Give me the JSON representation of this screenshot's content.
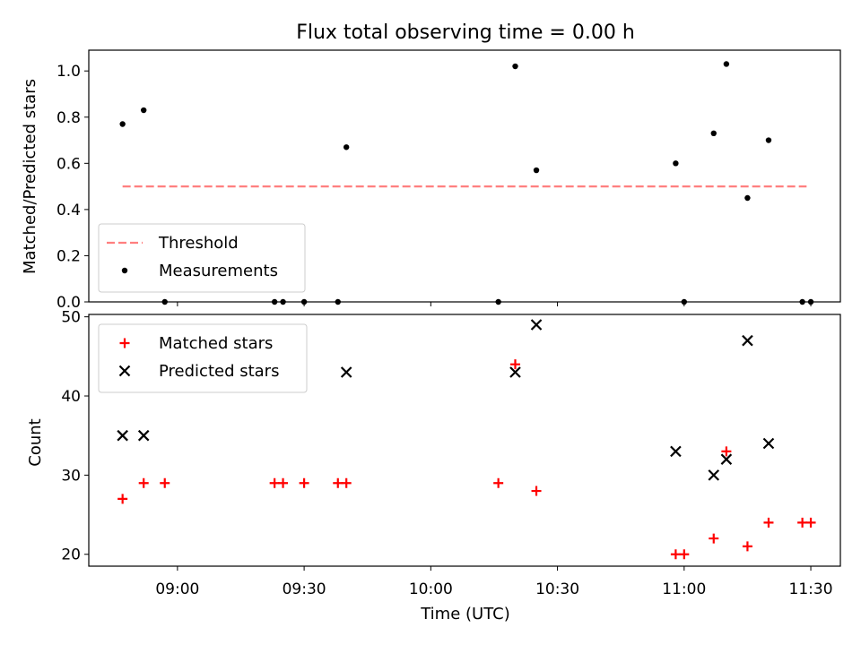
{
  "chart_data": [
    {
      "type": "scatter",
      "title": "Flux total observing time = 0.00 h",
      "xlabel": "",
      "ylabel": "Matched/Predicted stars",
      "xlim": [
        "08:39",
        "11:37"
      ],
      "ylim": [
        0,
        1.09
      ],
      "yticks": [
        0.0,
        0.2,
        0.4,
        0.6,
        0.8,
        1.0
      ],
      "ytick_labels": [
        "0.0",
        "0.2",
        "0.4",
        "0.6",
        "0.8",
        "1.0"
      ],
      "legend": {
        "position": "lower-left",
        "entries": [
          {
            "label": "Threshold",
            "marker": "dashed-line",
            "color": "#ff7f7f"
          },
          {
            "label": "Measurements",
            "marker": "dot",
            "color": "#000000"
          }
        ]
      },
      "threshold": {
        "name": "Threshold",
        "x": [
          "08:47",
          "11:29"
        ],
        "y": 0.5,
        "color": "#ff7f7f",
        "style": "dashed"
      },
      "series": [
        {
          "name": "Measurements",
          "color": "#000000",
          "marker": "dot",
          "points": [
            {
              "x": "08:47",
              "y": 0.77
            },
            {
              "x": "08:52",
              "y": 0.83
            },
            {
              "x": "08:57",
              "y": 0.0
            },
            {
              "x": "09:23",
              "y": 0.0
            },
            {
              "x": "09:25",
              "y": 0.0
            },
            {
              "x": "09:30",
              "y": 0.0
            },
            {
              "x": "09:38",
              "y": 0.0
            },
            {
              "x": "09:40",
              "y": 0.67
            },
            {
              "x": "10:16",
              "y": 0.0
            },
            {
              "x": "10:20",
              "y": 1.02
            },
            {
              "x": "10:25",
              "y": 0.57
            },
            {
              "x": "10:58",
              "y": 0.6
            },
            {
              "x": "11:00",
              "y": 0.0
            },
            {
              "x": "11:07",
              "y": 0.73
            },
            {
              "x": "11:10",
              "y": 1.03
            },
            {
              "x": "11:15",
              "y": 0.45
            },
            {
              "x": "11:20",
              "y": 0.7
            },
            {
              "x": "11:28",
              "y": 0.0
            },
            {
              "x": "11:30",
              "y": 0.0
            }
          ]
        }
      ]
    },
    {
      "type": "scatter",
      "title": "",
      "xlabel": "Time (UTC)",
      "ylabel": "Count",
      "xlim": [
        "08:39",
        "11:37"
      ],
      "ylim": [
        18.5,
        50.3
      ],
      "yticks": [
        20,
        30,
        40,
        50
      ],
      "ytick_labels": [
        "20",
        "30",
        "40",
        "50"
      ],
      "xticks": [
        "09:00",
        "09:30",
        "10:00",
        "10:30",
        "11:00",
        "11:30"
      ],
      "xtick_labels": [
        "09:00",
        "09:30",
        "10:00",
        "10:30",
        "11:00",
        "11:30"
      ],
      "legend": {
        "position": "top-left",
        "entries": [
          {
            "label": "Matched stars",
            "marker": "plus",
            "color": "#ff0000"
          },
          {
            "label": "Predicted stars",
            "marker": "x",
            "color": "#000000"
          }
        ]
      },
      "series": [
        {
          "name": "Matched stars",
          "color": "#ff0000",
          "marker": "plus",
          "points": [
            {
              "x": "08:47",
              "y": 27
            },
            {
              "x": "08:52",
              "y": 29
            },
            {
              "x": "08:57",
              "y": 29
            },
            {
              "x": "09:23",
              "y": 29
            },
            {
              "x": "09:25",
              "y": 29
            },
            {
              "x": "09:30",
              "y": 29
            },
            {
              "x": "09:38",
              "y": 29
            },
            {
              "x": "09:40",
              "y": 29
            },
            {
              "x": "10:16",
              "y": 29
            },
            {
              "x": "10:20",
              "y": 44
            },
            {
              "x": "10:25",
              "y": 28
            },
            {
              "x": "10:58",
              "y": 20
            },
            {
              "x": "11:00",
              "y": 20
            },
            {
              "x": "11:07",
              "y": 22
            },
            {
              "x": "11:10",
              "y": 33
            },
            {
              "x": "11:15",
              "y": 21
            },
            {
              "x": "11:20",
              "y": 24
            },
            {
              "x": "11:28",
              "y": 24
            },
            {
              "x": "11:30",
              "y": 24
            }
          ]
        },
        {
          "name": "Predicted stars",
          "color": "#000000",
          "marker": "x",
          "points": [
            {
              "x": "08:47",
              "y": 35
            },
            {
              "x": "08:52",
              "y": 35
            },
            {
              "x": "09:40",
              "y": 43
            },
            {
              "x": "10:20",
              "y": 43
            },
            {
              "x": "10:25",
              "y": 49
            },
            {
              "x": "10:58",
              "y": 33
            },
            {
              "x": "11:07",
              "y": 30
            },
            {
              "x": "11:10",
              "y": 32
            },
            {
              "x": "11:15",
              "y": 47
            },
            {
              "x": "11:20",
              "y": 34
            }
          ]
        }
      ]
    }
  ]
}
